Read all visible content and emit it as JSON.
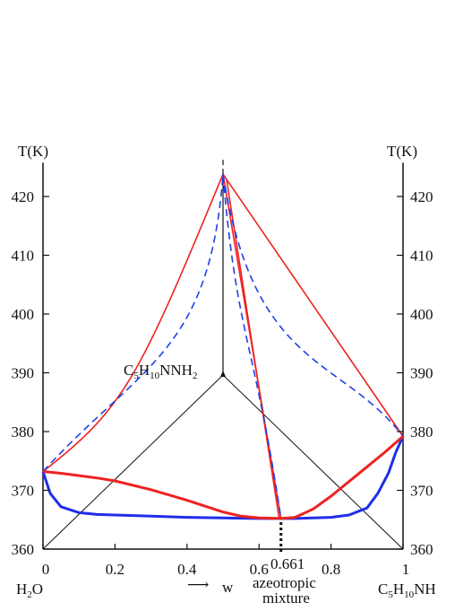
{
  "chart_data": {
    "type": "line",
    "axis_title_left": "T(K)",
    "axis_title_right": "T(K)",
    "y_ticks": [
      360,
      370,
      380,
      390,
      400,
      410,
      420
    ],
    "y_tick_labels": [
      "360",
      "370",
      "380",
      "390",
      "400",
      "410",
      "420"
    ],
    "ylim": [
      360,
      425
    ],
    "x_ticks": [
      0,
      0.2,
      0.4,
      0.6,
      0.8,
      1
    ],
    "x_tick_labels": [
      "0",
      "0.2",
      "0.4",
      "0.6",
      "0.8",
      "1"
    ],
    "xlim": [
      0,
      1
    ],
    "azeotrope_x": 0.661,
    "azeotrope_label": "0.661",
    "x_axis_label": "w",
    "x_axis_arrow": "⟶",
    "azeotrope_caption": [
      "azeotropic",
      "mixture"
    ],
    "components": {
      "left": {
        "base": "H",
        "sub": "2",
        "tail": "O"
      },
      "right": {
        "parts": [
          [
            "C",
            "5"
          ],
          [
            "H",
            "10"
          ],
          [
            "NH",
            ""
          ]
        ]
      },
      "top": {
        "parts": [
          [
            "C",
            "5"
          ],
          [
            "H",
            "10"
          ],
          [
            "NNH",
            "2"
          ]
        ]
      }
    },
    "colors": {
      "liquidus": "#ee2222",
      "vapor": "#1f2ee8",
      "dashed": "#2040e8",
      "axis": "#111111"
    },
    "liquid_curve": {
      "x": [
        0,
        0.05,
        0.1,
        0.15,
        0.2,
        0.3,
        0.4,
        0.5,
        0.55,
        0.6,
        0.661,
        0.7,
        0.75,
        0.8,
        0.85,
        0.9,
        0.95,
        1
      ],
      "y": [
        373.2,
        372.9,
        372.5,
        372.1,
        371.6,
        370.1,
        368.3,
        366.3,
        365.6,
        365.3,
        365.2,
        365.4,
        366.8,
        369.0,
        371.5,
        374.0,
        376.5,
        379.2
      ]
    },
    "vapor_curve": {
      "x": [
        0,
        0.02,
        0.05,
        0.1,
        0.15,
        0.2,
        0.3,
        0.4,
        0.5,
        0.6,
        0.661,
        0.7,
        0.8,
        0.85,
        0.9,
        0.93,
        0.96,
        0.98,
        1
      ],
      "y": [
        373.2,
        369.5,
        367.2,
        366.2,
        365.9,
        365.8,
        365.6,
        365.4,
        365.3,
        365.2,
        365.2,
        365.2,
        365.4,
        365.8,
        367.0,
        369.5,
        373.0,
        376.5,
        379.2
      ]
    },
    "ternary_summit_T": 423.8
  }
}
